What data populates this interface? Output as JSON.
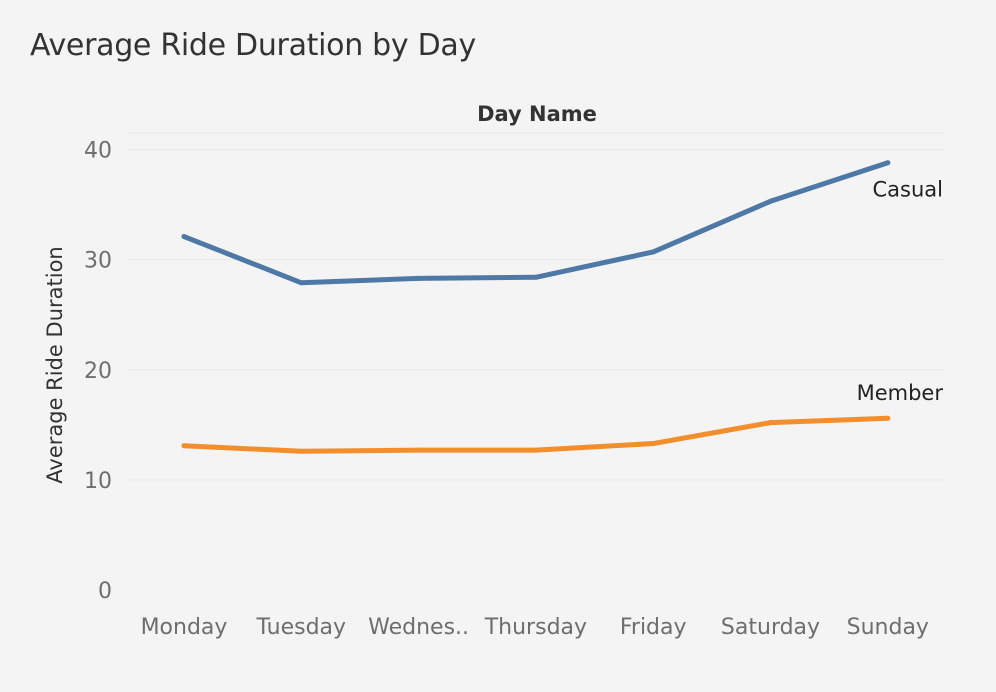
{
  "chart_data": {
    "type": "line",
    "title": "Average Ride Duration by Day",
    "column_header": "Day Name",
    "ylabel": "Average Ride Duration",
    "xlabel": "",
    "ylim": [
      0,
      41.5
    ],
    "y_ticks": [
      0,
      10,
      20,
      30,
      40
    ],
    "grid": true,
    "legend": "inline labels at line ends",
    "categories": [
      "Monday",
      "Tuesday",
      "Wednes..",
      "Thursday",
      "Friday",
      "Saturday",
      "Sunday"
    ],
    "series": [
      {
        "name": "Casual",
        "color": "#4e79a7",
        "values": [
          32.1,
          27.9,
          28.3,
          28.4,
          30.7,
          35.3,
          38.8
        ]
      },
      {
        "name": "Member",
        "color": "#f28e2b",
        "values": [
          13.1,
          12.6,
          12.7,
          12.7,
          13.3,
          15.2,
          15.6
        ]
      }
    ]
  }
}
